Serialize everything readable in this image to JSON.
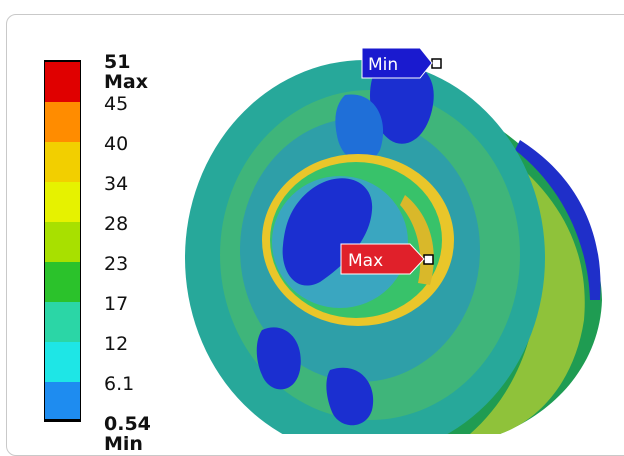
{
  "legend": {
    "ticks": [
      "51 Max",
      "45",
      "40",
      "34",
      "28",
      "23",
      "17",
      "12",
      "6.1",
      "0.54 Min"
    ],
    "colors": [
      "#e00000",
      "#ff8c00",
      "#f2cf00",
      "#e6f200",
      "#a8e000",
      "#2bc22b",
      "#2bd6a6",
      "#1ee6e6",
      "#1e8cf0",
      "#0a0ae6"
    ]
  },
  "markers": {
    "min_label": "Min",
    "max_label": "Max",
    "min_color": "#1a1acf",
    "max_color": "#e0202a"
  }
}
